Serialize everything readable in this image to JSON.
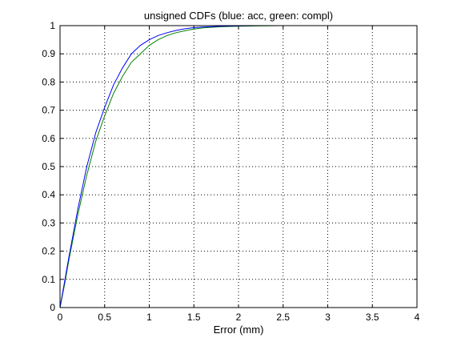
{
  "chart_data": {
    "type": "line",
    "title": "unsigned CDFs (blue: acc, green: compl)",
    "xlabel": "Error (mm)",
    "ylabel": "",
    "xlim": [
      0,
      4
    ],
    "ylim": [
      0,
      1
    ],
    "x_ticks": [
      "0",
      "0.5",
      "1",
      "1.5",
      "2",
      "2.5",
      "3",
      "3.5",
      "4"
    ],
    "y_ticks": [
      "0",
      "0.1",
      "0.2",
      "0.3",
      "0.4",
      "0.5",
      "0.6",
      "0.7",
      "0.8",
      "0.9",
      "1"
    ],
    "grid": true,
    "series": [
      {
        "color": "#0000ff",
        "x": [
          0,
          0.05,
          0.1,
          0.2,
          0.3,
          0.4,
          0.5,
          0.6,
          0.7,
          0.8,
          0.9,
          1.0,
          1.1,
          1.2,
          1.3,
          1.4,
          1.5,
          1.6,
          1.8,
          2.0,
          2.2
        ],
        "y": [
          0,
          0.09,
          0.18,
          0.35,
          0.5,
          0.62,
          0.71,
          0.79,
          0.85,
          0.9,
          0.93,
          0.95,
          0.965,
          0.975,
          0.983,
          0.989,
          0.993,
          0.995,
          0.998,
          0.999,
          1.0
        ]
      },
      {
        "color": "#008000",
        "x": [
          0,
          0.05,
          0.1,
          0.2,
          0.3,
          0.4,
          0.5,
          0.6,
          0.7,
          0.8,
          0.9,
          1.0,
          1.1,
          1.2,
          1.3,
          1.4,
          1.5,
          1.6,
          1.8,
          2.0,
          2.2,
          2.5,
          3.0,
          3.5,
          4.0
        ],
        "y": [
          0,
          0.08,
          0.17,
          0.33,
          0.47,
          0.59,
          0.68,
          0.76,
          0.82,
          0.87,
          0.9,
          0.93,
          0.95,
          0.965,
          0.975,
          0.982,
          0.988,
          0.992,
          0.996,
          0.998,
          0.999,
          1.0,
          1.0,
          1.0,
          1.0
        ]
      }
    ]
  }
}
